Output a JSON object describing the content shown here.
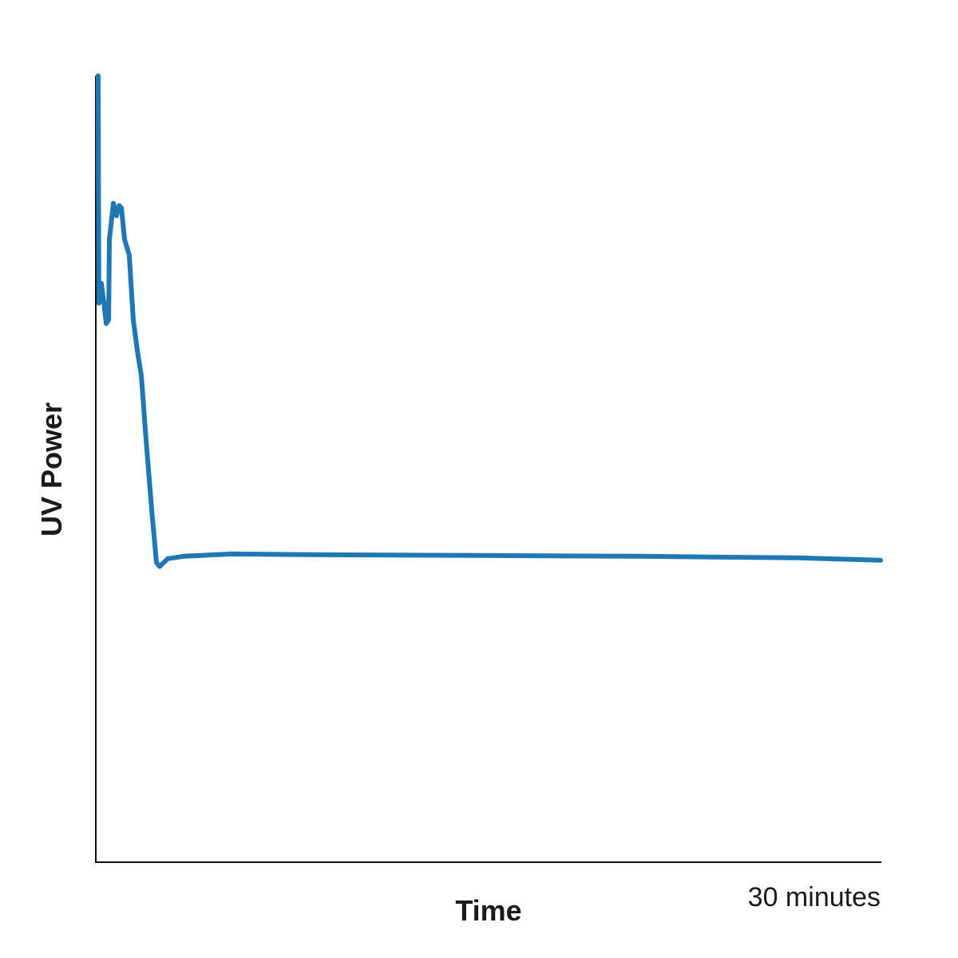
{
  "chart_data": {
    "type": "line",
    "xlabel": "Time",
    "ylabel": "UV Power",
    "x": [
      0.09,
      0.12,
      0.21,
      0.31,
      0.4,
      0.49,
      0.52,
      0.67,
      0.79,
      0.89,
      0.98,
      1.1,
      1.28,
      1.43,
      1.59,
      1.74,
      1.92,
      2.14,
      2.32,
      2.44,
      2.75,
      3.36,
      5.19,
      8.55,
      14.65,
      20.75,
      26.86,
      30
    ],
    "series": [
      {
        "color": "#1f77b4",
        "values": [
          100,
          71.1,
          73.6,
          71.1,
          68.5,
          69.0,
          79.2,
          83.8,
          82.2,
          83.5,
          83.2,
          79.2,
          77.2,
          69.0,
          65.0,
          61.9,
          53.8,
          44.7,
          38.1,
          37.6,
          38.6,
          38.9,
          39.2,
          39.1,
          39.0,
          38.9,
          38.7,
          38.4
        ]
      }
    ],
    "xlim": [
      0,
      30
    ],
    "ylim": [
      0,
      100
    ],
    "xticks": [
      {
        "value": 30,
        "label": "30 minutes"
      }
    ]
  }
}
